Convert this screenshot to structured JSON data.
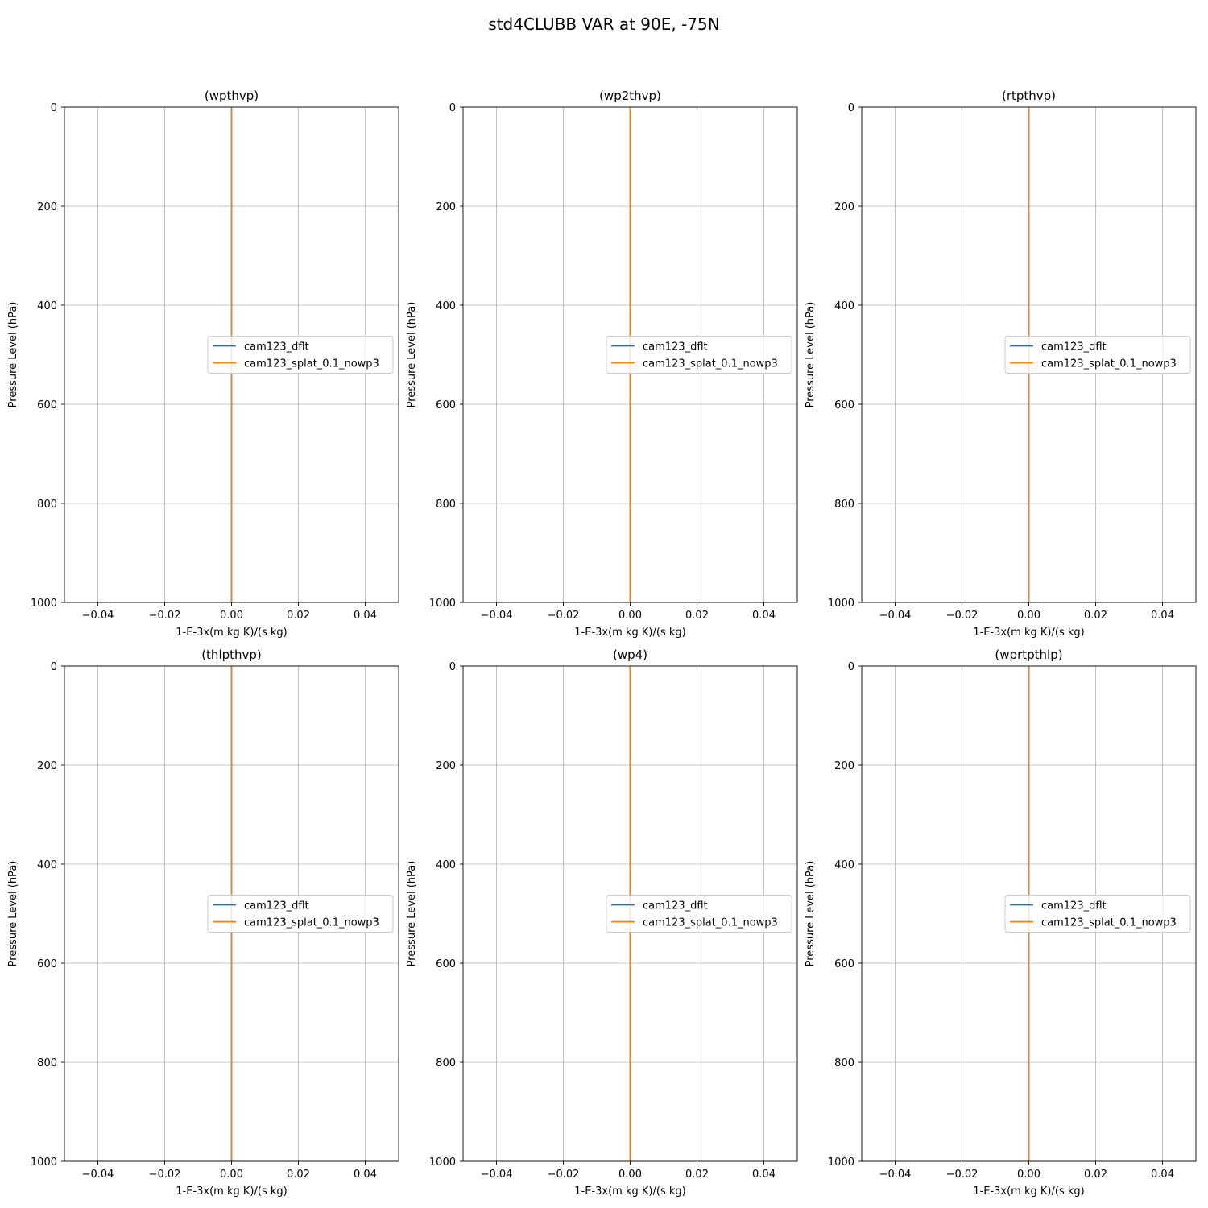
{
  "figure": {
    "suptitle": "std4CLUBB VAR at 90E, -75N"
  },
  "chart_data": [
    {
      "type": "line",
      "title": "(wpthvp)",
      "xlabel": "1-E-3x(m kg K)/(s kg)",
      "ylabel": "Pressure Level (hPa)",
      "xlim": [
        -0.05,
        0.05
      ],
      "ylim": [
        1000,
        0
      ],
      "y_inverted": true,
      "xticks": [
        -0.04,
        -0.02,
        0.0,
        0.02,
        0.04
      ],
      "xtick_labels": [
        "−0.04",
        "−0.02",
        "0.00",
        "0.02",
        "0.04"
      ],
      "yticks": [
        0,
        200,
        400,
        600,
        800,
        1000
      ],
      "ytick_labels": [
        "0",
        "200",
        "400",
        "600",
        "800",
        "1000"
      ],
      "grid": true,
      "legend": "center-right",
      "series": [
        {
          "name": "cam123_dflt",
          "color": "#1f77b4",
          "x": [
            0,
            0
          ],
          "y": [
            0,
            1000
          ]
        },
        {
          "name": "cam123_splat_0.1_nowp3",
          "color": "#ff7f0e",
          "x": [
            0,
            0
          ],
          "y": [
            0,
            1000
          ]
        }
      ]
    },
    {
      "type": "line",
      "title": "(wp2thvp)",
      "xlabel": "1-E-3x(m kg K)/(s kg)",
      "ylabel": "Pressure Level (hPa)",
      "xlim": [
        -0.05,
        0.05
      ],
      "ylim": [
        1000,
        0
      ],
      "y_inverted": true,
      "xticks": [
        -0.04,
        -0.02,
        0.0,
        0.02,
        0.04
      ],
      "xtick_labels": [
        "−0.04",
        "−0.02",
        "0.00",
        "0.02",
        "0.04"
      ],
      "yticks": [
        0,
        200,
        400,
        600,
        800,
        1000
      ],
      "ytick_labels": [
        "0",
        "200",
        "400",
        "600",
        "800",
        "1000"
      ],
      "grid": true,
      "legend": "center-right",
      "series": [
        {
          "name": "cam123_dflt",
          "color": "#1f77b4",
          "x": [
            0,
            0
          ],
          "y": [
            0,
            1000
          ]
        },
        {
          "name": "cam123_splat_0.1_nowp3",
          "color": "#ff7f0e",
          "x": [
            0,
            0
          ],
          "y": [
            0,
            1000
          ]
        }
      ]
    },
    {
      "type": "line",
      "title": "(rtpthvp)",
      "xlabel": "1-E-3x(m kg K)/(s kg)",
      "ylabel": "Pressure Level (hPa)",
      "xlim": [
        -0.05,
        0.05
      ],
      "ylim": [
        1000,
        0
      ],
      "y_inverted": true,
      "xticks": [
        -0.04,
        -0.02,
        0.0,
        0.02,
        0.04
      ],
      "xtick_labels": [
        "−0.04",
        "−0.02",
        "0.00",
        "0.02",
        "0.04"
      ],
      "yticks": [
        0,
        200,
        400,
        600,
        800,
        1000
      ],
      "ytick_labels": [
        "0",
        "200",
        "400",
        "600",
        "800",
        "1000"
      ],
      "grid": true,
      "legend": "center-right",
      "series": [
        {
          "name": "cam123_dflt",
          "color": "#1f77b4",
          "x": [
            0,
            0
          ],
          "y": [
            0,
            1000
          ]
        },
        {
          "name": "cam123_splat_0.1_nowp3",
          "color": "#ff7f0e",
          "x": [
            0,
            0
          ],
          "y": [
            0,
            1000
          ]
        }
      ]
    },
    {
      "type": "line",
      "title": "(thlpthvp)",
      "xlabel": "1-E-3x(m kg K)/(s kg)",
      "ylabel": "Pressure Level (hPa)",
      "xlim": [
        -0.05,
        0.05
      ],
      "ylim": [
        1000,
        0
      ],
      "y_inverted": true,
      "xticks": [
        -0.04,
        -0.02,
        0.0,
        0.02,
        0.04
      ],
      "xtick_labels": [
        "−0.04",
        "−0.02",
        "0.00",
        "0.02",
        "0.04"
      ],
      "yticks": [
        0,
        200,
        400,
        600,
        800,
        1000
      ],
      "ytick_labels": [
        "0",
        "200",
        "400",
        "600",
        "800",
        "1000"
      ],
      "grid": true,
      "legend": "center-right",
      "series": [
        {
          "name": "cam123_dflt",
          "color": "#1f77b4",
          "x": [
            0,
            0
          ],
          "y": [
            0,
            1000
          ]
        },
        {
          "name": "cam123_splat_0.1_nowp3",
          "color": "#ff7f0e",
          "x": [
            0,
            0
          ],
          "y": [
            0,
            1000
          ]
        }
      ]
    },
    {
      "type": "line",
      "title": "(wp4)",
      "xlabel": "1-E-3x(m kg K)/(s kg)",
      "ylabel": "Pressure Level (hPa)",
      "xlim": [
        -0.05,
        0.05
      ],
      "ylim": [
        1000,
        0
      ],
      "y_inverted": true,
      "xticks": [
        -0.04,
        -0.02,
        0.0,
        0.02,
        0.04
      ],
      "xtick_labels": [
        "−0.04",
        "−0.02",
        "0.00",
        "0.02",
        "0.04"
      ],
      "yticks": [
        0,
        200,
        400,
        600,
        800,
        1000
      ],
      "ytick_labels": [
        "0",
        "200",
        "400",
        "600",
        "800",
        "1000"
      ],
      "grid": true,
      "legend": "center-right",
      "series": [
        {
          "name": "cam123_dflt",
          "color": "#1f77b4",
          "x": [
            0,
            0
          ],
          "y": [
            0,
            1000
          ]
        },
        {
          "name": "cam123_splat_0.1_nowp3",
          "color": "#ff7f0e",
          "x": [
            0,
            0
          ],
          "y": [
            0,
            1000
          ]
        }
      ]
    },
    {
      "type": "line",
      "title": "(wprtpthlp)",
      "xlabel": "1-E-3x(m kg K)/(s kg)",
      "ylabel": "Pressure Level (hPa)",
      "xlim": [
        -0.05,
        0.05
      ],
      "ylim": [
        1000,
        0
      ],
      "y_inverted": true,
      "xticks": [
        -0.04,
        -0.02,
        0.0,
        0.02,
        0.04
      ],
      "xtick_labels": [
        "−0.04",
        "−0.02",
        "0.00",
        "0.02",
        "0.04"
      ],
      "yticks": [
        0,
        200,
        400,
        600,
        800,
        1000
      ],
      "ytick_labels": [
        "0",
        "200",
        "400",
        "600",
        "800",
        "1000"
      ],
      "grid": true,
      "legend": "center-right",
      "series": [
        {
          "name": "cam123_dflt",
          "color": "#1f77b4",
          "x": [
            0,
            0
          ],
          "y": [
            0,
            1000
          ]
        },
        {
          "name": "cam123_splat_0.1_nowp3",
          "color": "#ff7f0e",
          "x": [
            0,
            0
          ],
          "y": [
            0,
            1000
          ]
        }
      ]
    }
  ]
}
